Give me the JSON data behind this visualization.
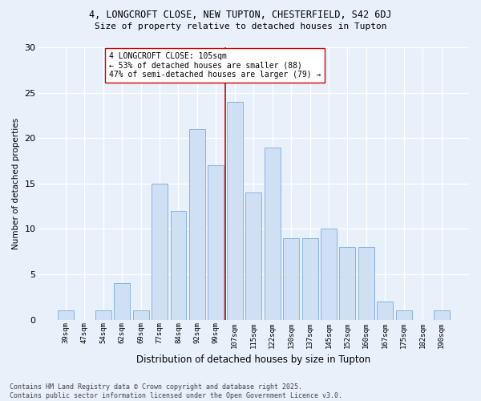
{
  "title_line1": "4, LONGCROFT CLOSE, NEW TUPTON, CHESTERFIELD, S42 6DJ",
  "title_line2": "Size of property relative to detached houses in Tupton",
  "xlabel": "Distribution of detached houses by size in Tupton",
  "ylabel": "Number of detached properties",
  "categories": [
    "39sqm",
    "47sqm",
    "54sqm",
    "62sqm",
    "69sqm",
    "77sqm",
    "84sqm",
    "92sqm",
    "99sqm",
    "107sqm",
    "115sqm",
    "122sqm",
    "130sqm",
    "137sqm",
    "145sqm",
    "152sqm",
    "160sqm",
    "167sqm",
    "175sqm",
    "182sqm",
    "190sqm"
  ],
  "values": [
    1,
    0,
    1,
    4,
    1,
    15,
    12,
    21,
    17,
    24,
    14,
    19,
    9,
    9,
    10,
    8,
    8,
    2,
    1,
    0,
    1
  ],
  "bar_color": "#cfe0f5",
  "bar_edge_color": "#7aabe0",
  "vline_color": "#cc0000",
  "vline_x_index": 9,
  "annotation_text": "4 LONGCROFT CLOSE: 105sqm\n← 53% of detached houses are smaller (88)\n47% of semi-detached houses are larger (79) →",
  "annotation_box_facecolor": "#ffffff",
  "annotation_box_edgecolor": "#cc0000",
  "background_color": "#e8f0fa",
  "grid_color": "#ffffff",
  "ylim": [
    0,
    30
  ],
  "yticks": [
    0,
    5,
    10,
    15,
    20,
    25,
    30
  ],
  "footer": "Contains HM Land Registry data © Crown copyright and database right 2025.\nContains public sector information licensed under the Open Government Licence v3.0."
}
